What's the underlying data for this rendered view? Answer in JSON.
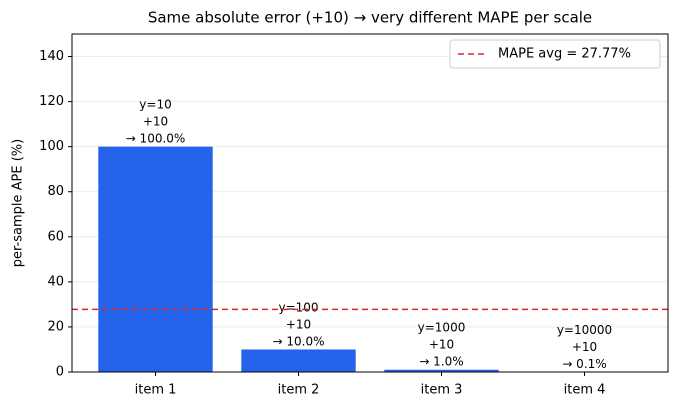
{
  "chart_data": {
    "type": "bar",
    "title": "Same absolute error (+10) → very different MAPE per scale",
    "y_label": "per-sample APE (%)",
    "categories": [
      "item 1",
      "item 2",
      "item 3",
      "item 4"
    ],
    "values": [
      100,
      10,
      1,
      0.1
    ],
    "value_labels": [
      "y=10\n+10\n→ 100.0%",
      "y=100\n+10\n→ 10.0%",
      "y=1000\n+10\n→ 1.0%",
      "y=10000\n+10\n→ 0.1%"
    ],
    "color": "#2563eb",
    "ylim": [
      0,
      150
    ],
    "yticks": [
      0,
      20,
      40,
      60,
      80,
      100,
      120,
      140
    ],
    "grid": true,
    "hline": {
      "value": 27.77,
      "label": "MAPE avg = 27.77%",
      "color": "#d62728"
    },
    "legend": "upper right"
  }
}
